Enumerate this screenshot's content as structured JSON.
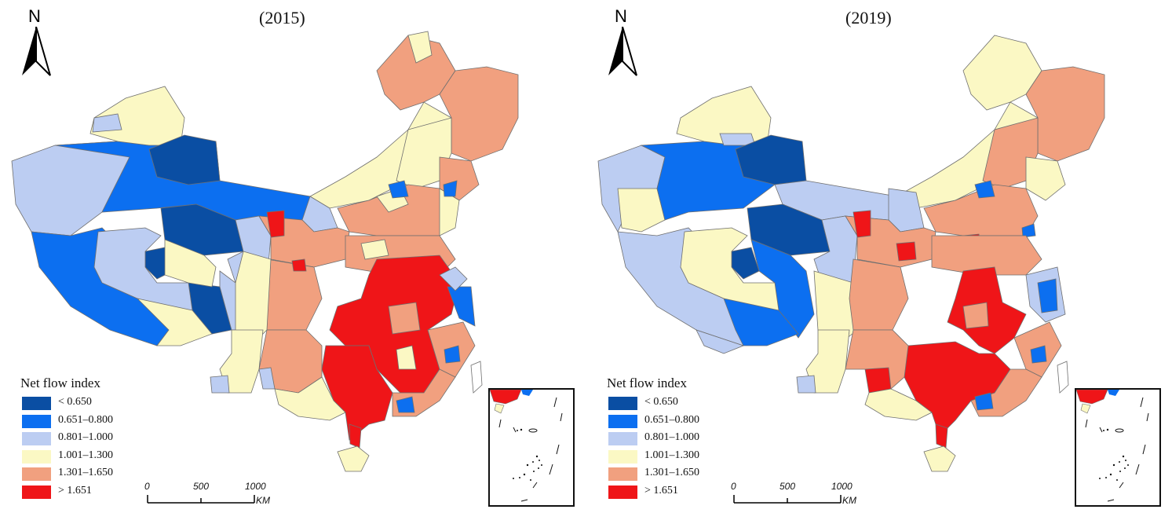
{
  "panels": [
    {
      "title": "(2015)"
    },
    {
      "title": "(2019)"
    }
  ],
  "north_arrow": {
    "letter": "N",
    "icon": "north-arrow-icon"
  },
  "legend": {
    "title": "Net flow index",
    "classes": [
      {
        "label": "< 0.650",
        "color": "#0a4ea3"
      },
      {
        "label": "0.651–0.800",
        "color": "#0c6ff0"
      },
      {
        "label": "0.801–1.000",
        "color": "#bccdf2"
      },
      {
        "label": "1.001–1.300",
        "color": "#fbf8c4"
      },
      {
        "label": "1.301–1.650",
        "color": "#f1a07f"
      },
      {
        "label": "> 1.651",
        "color": "#ef1518"
      }
    ]
  },
  "scalebar": {
    "labels": [
      "0",
      "500",
      "1000"
    ],
    "unit": "KM"
  },
  "colors": {
    "border": "#6f6f6f",
    "background": "#ffffff"
  }
}
